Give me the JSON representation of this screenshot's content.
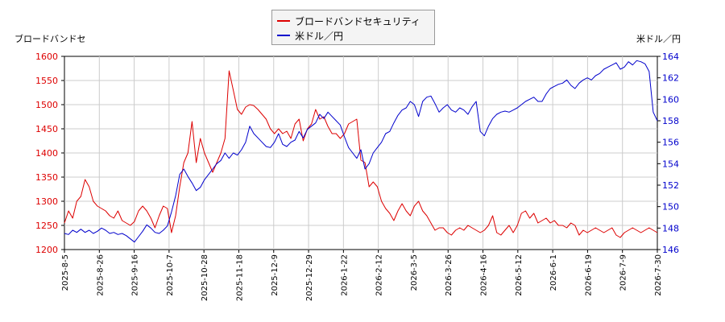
{
  "chart_data": {
    "type": "line",
    "left_axis_label": "ブロードバンドセ",
    "right_axis_label": "米ドル／円",
    "left_axis": {
      "min": 1200,
      "max": 1600,
      "ticks": [
        1200,
        1250,
        1300,
        1350,
        1400,
        1450,
        1500,
        1550,
        1600
      ],
      "color": "#dd0000"
    },
    "right_axis": {
      "min": 146,
      "max": 164,
      "ticks": [
        146,
        148,
        150,
        152,
        154,
        156,
        158,
        160,
        162,
        164
      ],
      "color": "#0000cc"
    },
    "x_ticks": [
      "2025-8-5",
      "2025-8-26",
      "2025-9-16",
      "2025-10-7",
      "2025-10-28",
      "2025-11-18",
      "2025-12-9",
      "2025-12-29",
      "2026-1-22",
      "2026-2-12",
      "2026-3-5",
      "2026-3-26",
      "2026-4-16",
      "2026-5-12",
      "2026-6-1",
      "2026-6-19",
      "2026-7-9",
      "2026-7-30"
    ],
    "grid": true,
    "legend_position": "top-center",
    "series": [
      {
        "name": "ブロードバンドセキュリティ",
        "axis": "left",
        "color": "#dd0000",
        "values": [
          [
            0,
            1255
          ],
          [
            1,
            1280
          ],
          [
            2,
            1265
          ],
          [
            3,
            1300
          ],
          [
            4,
            1310
          ],
          [
            5,
            1345
          ],
          [
            6,
            1330
          ],
          [
            7,
            1300
          ],
          [
            8,
            1290
          ],
          [
            9,
            1285
          ],
          [
            10,
            1280
          ],
          [
            11,
            1270
          ],
          [
            12,
            1265
          ],
          [
            13,
            1280
          ],
          [
            14,
            1260
          ],
          [
            15,
            1255
          ],
          [
            16,
            1250
          ],
          [
            17,
            1258
          ],
          [
            18,
            1280
          ],
          [
            19,
            1290
          ],
          [
            20,
            1280
          ],
          [
            21,
            1265
          ],
          [
            22,
            1245
          ],
          [
            23,
            1270
          ],
          [
            24,
            1290
          ],
          [
            25,
            1285
          ],
          [
            26,
            1235
          ],
          [
            27,
            1270
          ],
          [
            28,
            1330
          ],
          [
            29,
            1380
          ],
          [
            30,
            1400
          ],
          [
            31,
            1465
          ],
          [
            32,
            1380
          ],
          [
            33,
            1430
          ],
          [
            34,
            1400
          ],
          [
            35,
            1380
          ],
          [
            36,
            1360
          ],
          [
            37,
            1380
          ],
          [
            38,
            1400
          ],
          [
            39,
            1430
          ],
          [
            40,
            1570
          ],
          [
            41,
            1530
          ],
          [
            42,
            1490
          ],
          [
            43,
            1480
          ],
          [
            44,
            1495
          ],
          [
            45,
            1500
          ],
          [
            46,
            1498
          ],
          [
            47,
            1490
          ],
          [
            48,
            1480
          ],
          [
            49,
            1470
          ],
          [
            50,
            1450
          ],
          [
            51,
            1440
          ],
          [
            52,
            1450
          ],
          [
            53,
            1440
          ],
          [
            54,
            1445
          ],
          [
            55,
            1430
          ],
          [
            56,
            1460
          ],
          [
            57,
            1470
          ],
          [
            58,
            1425
          ],
          [
            59,
            1450
          ],
          [
            60,
            1460
          ],
          [
            61,
            1490
          ],
          [
            62,
            1470
          ],
          [
            63,
            1475
          ],
          [
            64,
            1455
          ],
          [
            65,
            1440
          ],
          [
            66,
            1440
          ],
          [
            67,
            1430
          ],
          [
            68,
            1440
          ],
          [
            69,
            1460
          ],
          [
            70,
            1465
          ],
          [
            71,
            1470
          ],
          [
            72,
            1385
          ],
          [
            73,
            1380
          ],
          [
            74,
            1330
          ],
          [
            75,
            1340
          ],
          [
            76,
            1330
          ],
          [
            77,
            1300
          ],
          [
            78,
            1285
          ],
          [
            79,
            1275
          ],
          [
            80,
            1260
          ],
          [
            81,
            1280
          ],
          [
            82,
            1295
          ],
          [
            83,
            1280
          ],
          [
            84,
            1270
          ],
          [
            85,
            1290
          ],
          [
            86,
            1300
          ],
          [
            87,
            1280
          ],
          [
            88,
            1270
          ],
          [
            89,
            1255
          ],
          [
            90,
            1240
          ],
          [
            91,
            1245
          ],
          [
            92,
            1245
          ],
          [
            93,
            1235
          ],
          [
            94,
            1230
          ],
          [
            95,
            1240
          ],
          [
            96,
            1245
          ],
          [
            97,
            1240
          ],
          [
            98,
            1250
          ],
          [
            99,
            1245
          ],
          [
            100,
            1240
          ],
          [
            101,
            1235
          ],
          [
            102,
            1240
          ],
          [
            103,
            1250
          ],
          [
            104,
            1270
          ],
          [
            105,
            1235
          ],
          [
            106,
            1230
          ],
          [
            107,
            1240
          ],
          [
            108,
            1250
          ],
          [
            109,
            1235
          ],
          [
            110,
            1250
          ],
          [
            111,
            1275
          ],
          [
            112,
            1280
          ],
          [
            113,
            1265
          ],
          [
            114,
            1275
          ],
          [
            115,
            1255
          ],
          [
            116,
            1260
          ],
          [
            117,
            1265
          ],
          [
            118,
            1255
          ],
          [
            119,
            1260
          ],
          [
            120,
            1250
          ],
          [
            121,
            1250
          ],
          [
            122,
            1245
          ],
          [
            123,
            1255
          ],
          [
            124,
            1250
          ],
          [
            125,
            1230
          ],
          [
            126,
            1240
          ],
          [
            127,
            1235
          ],
          [
            128,
            1240
          ],
          [
            129,
            1245
          ],
          [
            130,
            1240
          ],
          [
            131,
            1235
          ],
          [
            132,
            1240
          ],
          [
            133,
            1245
          ],
          [
            134,
            1230
          ],
          [
            135,
            1225
          ],
          [
            136,
            1235
          ],
          [
            137,
            1240
          ],
          [
            138,
            1245
          ],
          [
            139,
            1240
          ],
          [
            140,
            1235
          ],
          [
            141,
            1240
          ],
          [
            142,
            1245
          ],
          [
            143,
            1240
          ],
          [
            144,
            1235
          ]
        ]
      },
      {
        "name": "米ドル／円",
        "axis": "right",
        "color": "#0000cc",
        "values": [
          [
            0,
            147.5
          ],
          [
            1,
            147.4
          ],
          [
            2,
            147.8
          ],
          [
            3,
            147.6
          ],
          [
            4,
            147.9
          ],
          [
            5,
            147.6
          ],
          [
            6,
            147.8
          ],
          [
            7,
            147.5
          ],
          [
            8,
            147.7
          ],
          [
            9,
            148.0
          ],
          [
            10,
            147.8
          ],
          [
            11,
            147.5
          ],
          [
            12,
            147.6
          ],
          [
            13,
            147.4
          ],
          [
            14,
            147.5
          ],
          [
            15,
            147.3
          ],
          [
            16,
            147.0
          ],
          [
            17,
            146.7
          ],
          [
            18,
            147.2
          ],
          [
            19,
            147.7
          ],
          [
            20,
            148.3
          ],
          [
            21,
            148.0
          ],
          [
            22,
            147.6
          ],
          [
            23,
            147.5
          ],
          [
            24,
            147.8
          ],
          [
            25,
            148.2
          ],
          [
            26,
            149.5
          ],
          [
            27,
            151.0
          ],
          [
            28,
            153.0
          ],
          [
            29,
            153.5
          ],
          [
            30,
            152.8
          ],
          [
            31,
            152.2
          ],
          [
            32,
            151.5
          ],
          [
            33,
            151.8
          ],
          [
            34,
            152.5
          ],
          [
            35,
            153.0
          ],
          [
            36,
            153.5
          ],
          [
            37,
            154.0
          ],
          [
            38,
            154.3
          ],
          [
            39,
            155.0
          ],
          [
            40,
            154.5
          ],
          [
            41,
            155.0
          ],
          [
            42,
            154.8
          ],
          [
            43,
            155.3
          ],
          [
            44,
            156.0
          ],
          [
            45,
            157.5
          ],
          [
            46,
            156.8
          ],
          [
            47,
            156.4
          ],
          [
            48,
            156.0
          ],
          [
            49,
            155.6
          ],
          [
            50,
            155.5
          ],
          [
            51,
            156.0
          ],
          [
            52,
            156.8
          ],
          [
            53,
            155.8
          ],
          [
            54,
            155.6
          ],
          [
            55,
            156.0
          ],
          [
            56,
            156.2
          ],
          [
            57,
            157.0
          ],
          [
            58,
            156.4
          ],
          [
            59,
            157.2
          ],
          [
            60,
            157.5
          ],
          [
            61,
            157.8
          ],
          [
            62,
            158.6
          ],
          [
            63,
            158.2
          ],
          [
            64,
            158.8
          ],
          [
            65,
            158.4
          ],
          [
            66,
            158.0
          ],
          [
            67,
            157.6
          ],
          [
            68,
            156.5
          ],
          [
            69,
            155.5
          ],
          [
            70,
            155.0
          ],
          [
            71,
            154.5
          ],
          [
            72,
            155.3
          ],
          [
            73,
            153.5
          ],
          [
            74,
            154.0
          ],
          [
            75,
            155.0
          ],
          [
            76,
            155.5
          ],
          [
            77,
            156.0
          ],
          [
            78,
            156.8
          ],
          [
            79,
            157.0
          ],
          [
            80,
            157.8
          ],
          [
            81,
            158.5
          ],
          [
            82,
            159.0
          ],
          [
            83,
            159.2
          ],
          [
            84,
            159.8
          ],
          [
            85,
            159.5
          ],
          [
            86,
            158.4
          ],
          [
            87,
            159.8
          ],
          [
            88,
            160.2
          ],
          [
            89,
            160.3
          ],
          [
            90,
            159.6
          ],
          [
            91,
            158.8
          ],
          [
            92,
            159.2
          ],
          [
            93,
            159.5
          ],
          [
            94,
            159.0
          ],
          [
            95,
            158.8
          ],
          [
            96,
            159.2
          ],
          [
            97,
            159.0
          ],
          [
            98,
            158.6
          ],
          [
            99,
            159.3
          ],
          [
            100,
            159.8
          ],
          [
            101,
            157.0
          ],
          [
            102,
            156.6
          ],
          [
            103,
            157.5
          ],
          [
            104,
            158.2
          ],
          [
            105,
            158.6
          ],
          [
            106,
            158.8
          ],
          [
            107,
            158.9
          ],
          [
            108,
            158.8
          ],
          [
            109,
            159.0
          ],
          [
            110,
            159.2
          ],
          [
            111,
            159.5
          ],
          [
            112,
            159.8
          ],
          [
            113,
            160.0
          ],
          [
            114,
            160.2
          ],
          [
            115,
            159.8
          ],
          [
            116,
            159.8
          ],
          [
            117,
            160.5
          ],
          [
            118,
            161.0
          ],
          [
            119,
            161.2
          ],
          [
            120,
            161.4
          ],
          [
            121,
            161.5
          ],
          [
            122,
            161.8
          ],
          [
            123,
            161.3
          ],
          [
            124,
            161.0
          ],
          [
            125,
            161.5
          ],
          [
            126,
            161.8
          ],
          [
            127,
            162.0
          ],
          [
            128,
            161.8
          ],
          [
            129,
            162.2
          ],
          [
            130,
            162.4
          ],
          [
            131,
            162.8
          ],
          [
            132,
            163.0
          ],
          [
            133,
            163.2
          ],
          [
            134,
            163.4
          ],
          [
            135,
            162.8
          ],
          [
            136,
            163.0
          ],
          [
            137,
            163.5
          ],
          [
            138,
            163.2
          ],
          [
            139,
            163.6
          ],
          [
            140,
            163.5
          ],
          [
            141,
            163.3
          ],
          [
            142,
            162.6
          ],
          [
            143,
            158.8
          ],
          [
            144,
            158.0
          ]
        ]
      }
    ]
  }
}
